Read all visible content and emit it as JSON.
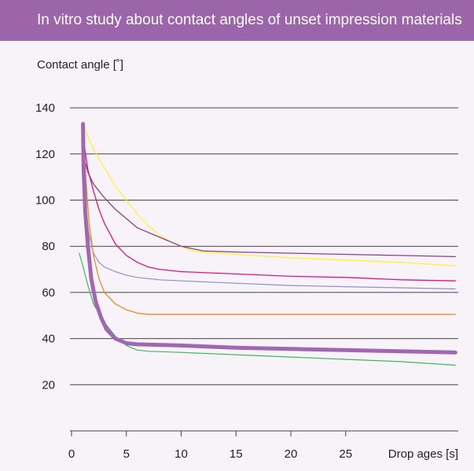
{
  "chart_data": {
    "type": "line",
    "title": "In vitro study about contact angles of unset impression materials",
    "ylabel": "Contact angle [˚]",
    "xlabel": "Drop ages [s]",
    "xlim": [
      0,
      35
    ],
    "ylim": [
      0,
      140
    ],
    "x_ticks": [
      0,
      5,
      10,
      15,
      20,
      25
    ],
    "y_ticks": [
      20,
      40,
      60,
      80,
      100,
      120,
      140
    ],
    "grid": "horizontal",
    "series": [
      {
        "color": "#fff133",
        "width": 1.3,
        "points": [
          [
            1.2,
            131
          ],
          [
            2,
            122
          ],
          [
            3,
            114
          ],
          [
            4,
            106
          ],
          [
            5,
            100
          ],
          [
            6,
            94
          ],
          [
            7,
            89
          ],
          [
            8,
            85
          ],
          [
            9,
            82
          ],
          [
            10,
            80
          ],
          [
            11,
            78
          ],
          [
            12,
            77.5
          ],
          [
            15,
            76.5
          ],
          [
            20,
            75
          ],
          [
            25,
            74
          ],
          [
            30,
            73
          ],
          [
            35,
            71.5
          ]
        ]
      },
      {
        "color": "#8b3d8f",
        "width": 1.3,
        "points": [
          [
            1.1,
            119
          ],
          [
            1.5,
            112
          ],
          [
            2,
            107
          ],
          [
            3,
            101
          ],
          [
            4,
            96
          ],
          [
            5,
            92
          ],
          [
            6,
            88
          ],
          [
            8,
            84
          ],
          [
            10,
            80
          ],
          [
            12,
            78
          ],
          [
            15,
            77.5
          ],
          [
            20,
            77
          ],
          [
            25,
            76.5
          ],
          [
            30,
            76
          ],
          [
            35,
            75.5
          ]
        ]
      },
      {
        "color": "#e0147c",
        "width": 1.3,
        "points": [
          [
            1.1,
            126
          ],
          [
            1.5,
            113
          ],
          [
            2,
            104
          ],
          [
            2.5,
            96
          ],
          [
            3,
            90
          ],
          [
            4,
            81
          ],
          [
            5,
            76
          ],
          [
            6,
            73
          ],
          [
            7,
            71
          ],
          [
            8,
            70
          ],
          [
            10,
            69
          ],
          [
            15,
            68
          ],
          [
            20,
            67
          ],
          [
            25,
            66.5
          ],
          [
            30,
            65.5
          ],
          [
            35,
            65
          ]
        ]
      },
      {
        "color": "#8f8fcc",
        "width": 1.2,
        "points": [
          [
            1.1,
            112
          ],
          [
            1.3,
            95
          ],
          [
            1.6,
            85
          ],
          [
            2,
            77
          ],
          [
            2.5,
            73
          ],
          [
            3,
            71
          ],
          [
            4,
            69
          ],
          [
            5,
            67.5
          ],
          [
            6,
            66.5
          ],
          [
            8,
            65.5
          ],
          [
            10,
            65
          ],
          [
            15,
            64
          ],
          [
            20,
            63
          ],
          [
            25,
            62.5
          ],
          [
            30,
            62
          ],
          [
            35,
            61.5
          ]
        ]
      },
      {
        "color": "#f28c1c",
        "width": 1.3,
        "points": [
          [
            1.1,
            131
          ],
          [
            1.3,
            110
          ],
          [
            1.6,
            90
          ],
          [
            2,
            76
          ],
          [
            2.5,
            66
          ],
          [
            3,
            60
          ],
          [
            4,
            55
          ],
          [
            5,
            52.5
          ],
          [
            6,
            51
          ],
          [
            7,
            50.5
          ],
          [
            8,
            50.5
          ],
          [
            15,
            50.5
          ],
          [
            25,
            50.5
          ],
          [
            35,
            50.5
          ]
        ]
      },
      {
        "color": "#3db85a",
        "width": 1.2,
        "points": [
          [
            0.7,
            77
          ],
          [
            1,
            72
          ],
          [
            1.5,
            63
          ],
          [
            2,
            55
          ],
          [
            3,
            47
          ],
          [
            4,
            41
          ],
          [
            5,
            37
          ],
          [
            6,
            35
          ],
          [
            7,
            34.5
          ],
          [
            10,
            34
          ],
          [
            15,
            33
          ],
          [
            20,
            32
          ],
          [
            25,
            31
          ],
          [
            30,
            30
          ],
          [
            35,
            28.5
          ]
        ]
      },
      {
        "color": "#a068b0",
        "width": 5,
        "points": [
          [
            1.05,
            133
          ],
          [
            1.1,
            115
          ],
          [
            1.25,
            95
          ],
          [
            1.5,
            80
          ],
          [
            1.8,
            66
          ],
          [
            2.2,
            56
          ],
          [
            2.7,
            49
          ],
          [
            3.2,
            44
          ],
          [
            4,
            40
          ],
          [
            5,
            38
          ],
          [
            6,
            37.5
          ],
          [
            10,
            37
          ],
          [
            15,
            36
          ],
          [
            20,
            35.5
          ],
          [
            25,
            35
          ],
          [
            30,
            34.5
          ],
          [
            35,
            34
          ]
        ]
      }
    ]
  }
}
